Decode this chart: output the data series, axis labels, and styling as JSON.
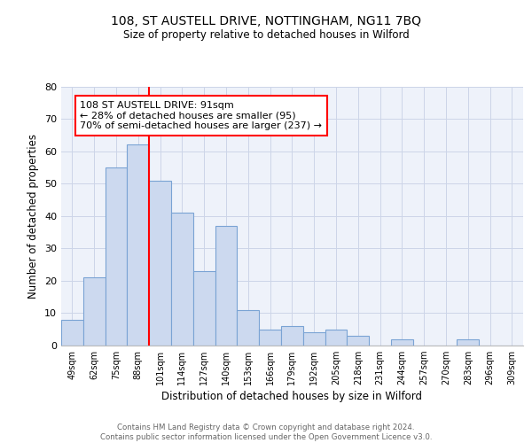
{
  "title1": "108, ST AUSTELL DRIVE, NOTTINGHAM, NG11 7BQ",
  "title2": "Size of property relative to detached houses in Wilford",
  "xlabel": "Distribution of detached houses by size in Wilford",
  "ylabel": "Number of detached properties",
  "bar_labels": [
    "49sqm",
    "62sqm",
    "75sqm",
    "88sqm",
    "101sqm",
    "114sqm",
    "127sqm",
    "140sqm",
    "153sqm",
    "166sqm",
    "179sqm",
    "192sqm",
    "205sqm",
    "218sqm",
    "231sqm",
    "244sqm",
    "257sqm",
    "270sqm",
    "283sqm",
    "296sqm",
    "309sqm"
  ],
  "bar_values": [
    8,
    21,
    55,
    62,
    51,
    41,
    23,
    37,
    11,
    5,
    6,
    4,
    5,
    3,
    0,
    2,
    0,
    0,
    2,
    0,
    0
  ],
  "bar_color": "#ccd9ef",
  "bar_edge_color": "#7aa3d4",
  "vline_x": 3.5,
  "vline_color": "red",
  "annotation_text": "108 ST AUSTELL DRIVE: 91sqm\n← 28% of detached houses are smaller (95)\n70% of semi-detached houses are larger (237) →",
  "annotation_box_color": "white",
  "annotation_box_edge_color": "red",
  "ylim": [
    0,
    80
  ],
  "yticks": [
    0,
    10,
    20,
    30,
    40,
    50,
    60,
    70,
    80
  ],
  "grid_color": "#ccd5e8",
  "footer_text": "Contains HM Land Registry data © Crown copyright and database right 2024.\nContains public sector information licensed under the Open Government Licence v3.0.",
  "bg_color": "#eef2fa"
}
